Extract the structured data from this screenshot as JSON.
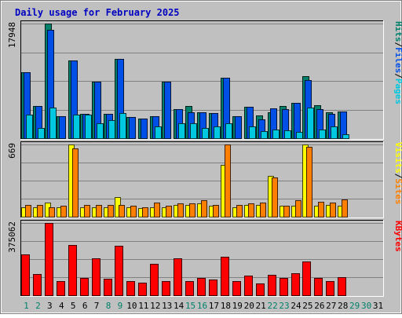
{
  "chart_data": {
    "type": "bar",
    "title": "Daily usage for February 2025",
    "days": [
      "1",
      "2",
      "3",
      "4",
      "5",
      "6",
      "7",
      "8",
      "9",
      "10",
      "11",
      "12",
      "13",
      "14",
      "15",
      "16",
      "17",
      "18",
      "19",
      "20",
      "21",
      "22",
      "23",
      "24",
      "25",
      "26",
      "27",
      "28",
      "29",
      "30",
      "31"
    ],
    "weekend_days": [
      "1",
      "2",
      "8",
      "9",
      "15",
      "16",
      "22",
      "23",
      "29",
      "30"
    ],
    "panels": [
      {
        "id": "hits-files-pages",
        "max_label": "17948",
        "ymax": 17948,
        "axis_label": [
          {
            "text": "Pages",
            "color": "#00c8e0"
          },
          {
            "text": "/",
            "color": "#000000"
          },
          {
            "text": "Files",
            "color": "#0050e8"
          },
          {
            "text": "/",
            "color": "#000000"
          },
          {
            "text": "Hits",
            "color": "#00806a"
          }
        ],
        "series": [
          {
            "name": "Hits",
            "color": "#00806a",
            "values": [
              10300,
              5100,
              17948,
              3400,
              12200,
              3800,
              8900,
              3800,
              12400,
              3300,
              3100,
              3500,
              8900,
              4500,
              5000,
              4000,
              3900,
              9500,
              3500,
              4900,
              3600,
              4000,
              5000,
              5500,
              9700,
              5200,
              4000,
              4200,
              0,
              0,
              0
            ]
          },
          {
            "name": "Files",
            "color": "#0050e8",
            "values": [
              10300,
              5100,
              17000,
              3400,
              12200,
              3800,
              8900,
              3800,
              12400,
              3300,
              3100,
              3500,
              8900,
              4500,
              4000,
              4000,
              3900,
              9500,
              3500,
              4900,
              2900,
              4700,
              4600,
              5500,
              9100,
              4600,
              3800,
              4200,
              0,
              0,
              0
            ]
          },
          {
            "name": "Pages",
            "color": "#00c8e0",
            "values": [
              3700,
              1600,
              4800,
              0,
              3700,
              3700,
              2300,
              2800,
              3900,
              0,
              0,
              1900,
              0,
              2300,
              2300,
              1600,
              1800,
              2300,
              0,
              1800,
              1100,
              1300,
              1200,
              1000,
              4800,
              1400,
              1800,
              600,
              0,
              0,
              0
            ]
          }
        ]
      },
      {
        "id": "visits-sites",
        "max_label": "669",
        "ymax": 669,
        "axis_label": [
          {
            "text": "Sites",
            "color": "#ff8000"
          },
          {
            "text": "/",
            "color": "#000000"
          },
          {
            "text": "Visits",
            "color": "#ffff00"
          }
        ],
        "series": [
          {
            "name": "Visits",
            "color": "#ffff00",
            "values": [
              90,
              90,
              130,
              90,
              669,
              90,
              90,
              90,
              180,
              90,
              80,
              90,
              90,
              110,
              110,
              120,
              100,
              480,
              90,
              110,
              110,
              380,
              100,
              100,
              669,
              100,
              110,
              100,
              0,
              0,
              0
            ]
          },
          {
            "name": "Sites",
            "color": "#ff8000",
            "values": [
              110,
              110,
              90,
              100,
              630,
              110,
              110,
              110,
              110,
              100,
              90,
              130,
              100,
              120,
              120,
              150,
              110,
              669,
              110,
              120,
              130,
              360,
              100,
              150,
              650,
              140,
              130,
              160,
              0,
              0,
              0
            ]
          }
        ]
      },
      {
        "id": "kbytes",
        "max_label": "375062",
        "ymax": 375062,
        "axis_label": [
          {
            "text": "KBytes",
            "color": "#ff0000"
          }
        ],
        "series": [
          {
            "name": "KBytes",
            "color": "#ff0000",
            "values": [
              210000,
              110000,
              375062,
              75000,
              260000,
              90000,
              190000,
              85000,
              255000,
              75000,
              65000,
              165000,
              75000,
              190000,
              75000,
              90000,
              80000,
              200000,
              75000,
              100000,
              60000,
              105000,
              90000,
              115000,
              175000,
              90000,
              75000,
              95000,
              0,
              0,
              0
            ]
          }
        ]
      }
    ]
  }
}
